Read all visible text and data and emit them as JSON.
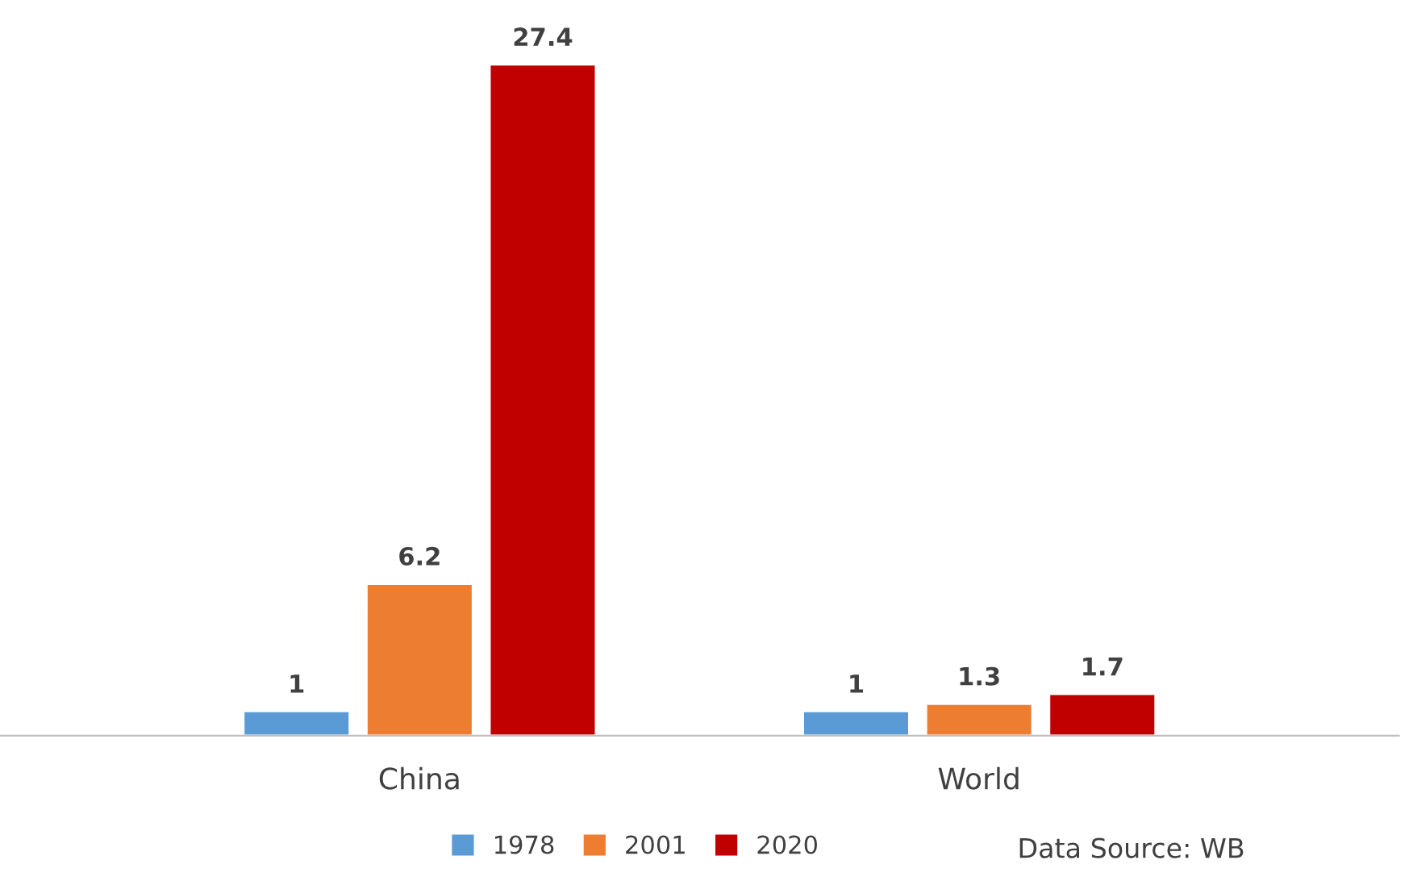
{
  "chart_data": {
    "type": "bar",
    "categories": [
      "China",
      "World"
    ],
    "series": [
      {
        "name": "1978",
        "color": "#5b9bd5",
        "values": [
          1,
          1
        ]
      },
      {
        "name": "2001",
        "color": "#ed7d31",
        "values": [
          6.2,
          1.3
        ]
      },
      {
        "name": "2020",
        "color": "#c00000",
        "values": [
          27.4,
          1.7
        ]
      }
    ],
    "data_labels": true,
    "tick_labels": "x",
    "legend": "bottom",
    "grid": false,
    "annotations": [
      "Data Source: WB"
    ]
  }
}
